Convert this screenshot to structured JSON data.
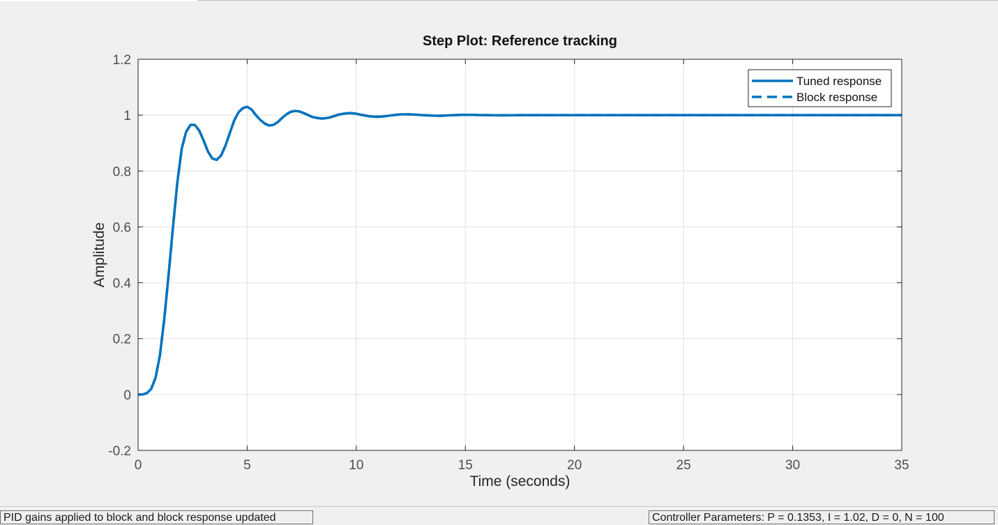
{
  "status_bar": {
    "left_message": "PID gains applied to block and block response updated",
    "right_message": "Controller Parameters: P = 0.1353, I = 1.02, D =  0, N = 100"
  },
  "colors": {
    "series": "#0072bd",
    "grid": "#e0e0e0",
    "axis": "#262626",
    "tick_text": "#4d4d4d",
    "background": "#f0f0f0",
    "plot_background": "#ffffff"
  },
  "chart_data": {
    "type": "line",
    "title": "Step Plot: Reference tracking",
    "xlabel": "Time (seconds)",
    "ylabel": "Amplitude",
    "xlim": [
      0,
      35
    ],
    "ylim": [
      -0.2,
      1.2
    ],
    "xticks": [
      0,
      5,
      10,
      15,
      20,
      25,
      30,
      35
    ],
    "yticks": [
      -0.2,
      0,
      0.2,
      0.4,
      0.6,
      0.8,
      1,
      1.2
    ],
    "xtick_labels": [
      "0",
      "5",
      "10",
      "15",
      "20",
      "25",
      "30",
      "35"
    ],
    "ytick_labels": [
      "-0.2",
      "0",
      "0.2",
      "0.4",
      "0.6",
      "0.8",
      "1",
      "1.2"
    ],
    "grid": true,
    "legend_position": "top-right",
    "series": [
      {
        "name": "Tuned response",
        "style": "solid",
        "x": [
          0,
          0.2,
          0.4,
          0.6,
          0.8,
          1.0,
          1.2,
          1.4,
          1.6,
          1.8,
          2.0,
          2.2,
          2.4,
          2.6,
          2.8,
          3.0,
          3.2,
          3.4,
          3.6,
          3.8,
          4.0,
          4.2,
          4.4,
          4.6,
          4.8,
          5.0,
          5.2,
          5.4,
          5.6,
          5.8,
          6.0,
          6.2,
          6.4,
          6.6,
          6.8,
          7.0,
          7.2,
          7.4,
          7.6,
          7.8,
          8.0,
          8.2,
          8.4,
          8.6,
          8.8,
          9.0,
          9.2,
          9.4,
          9.6,
          9.8,
          10.0,
          10.3,
          10.6,
          10.9,
          11.2,
          11.5,
          11.8,
          12.1,
          12.4,
          12.7,
          13.0,
          13.3,
          13.6,
          13.9,
          14.2,
          14.5,
          14.8,
          15.1,
          15.4,
          15.7,
          16.0,
          16.5,
          17.0,
          17.5,
          18.0,
          18.5,
          19.0,
          20.0,
          22.0,
          25.0,
          30.0,
          35.0
        ],
        "y": [
          0,
          0,
          0.005,
          0.02,
          0.06,
          0.14,
          0.27,
          0.43,
          0.6,
          0.76,
          0.88,
          0.94,
          0.965,
          0.965,
          0.945,
          0.91,
          0.87,
          0.845,
          0.84,
          0.855,
          0.89,
          0.935,
          0.98,
          1.01,
          1.025,
          1.03,
          1.02,
          1.0,
          0.983,
          0.97,
          0.963,
          0.965,
          0.975,
          0.99,
          1.003,
          1.012,
          1.015,
          1.013,
          1.007,
          1.0,
          0.993,
          0.99,
          0.988,
          0.989,
          0.992,
          0.997,
          1.002,
          1.005,
          1.007,
          1.007,
          1.005,
          1.0,
          0.996,
          0.994,
          0.995,
          0.998,
          1.001,
          1.003,
          1.003,
          1.002,
          1.0,
          0.999,
          0.998,
          0.998,
          0.999,
          1.0,
          1.001,
          1.001,
          1.001,
          1.0,
          1.0,
          0.9995,
          0.9995,
          1.0,
          1.0,
          1.0,
          1.0,
          1.0,
          1.0,
          1.0,
          1.0,
          1.0
        ]
      },
      {
        "name": "Block response",
        "style": "dashed",
        "x": [
          0,
          0.2,
          0.4,
          0.6,
          0.8,
          1.0,
          1.2,
          1.4,
          1.6,
          1.8,
          2.0,
          2.2,
          2.4,
          2.6,
          2.8,
          3.0,
          3.2,
          3.4,
          3.6,
          3.8,
          4.0,
          4.2,
          4.4,
          4.6,
          4.8,
          5.0,
          5.2,
          5.4,
          5.6,
          5.8,
          6.0,
          6.2,
          6.4,
          6.6,
          6.8,
          7.0,
          7.2,
          7.4,
          7.6,
          7.8,
          8.0,
          8.2,
          8.4,
          8.6,
          8.8,
          9.0,
          9.2,
          9.4,
          9.6,
          9.8,
          10.0,
          10.3,
          10.6,
          10.9,
          11.2,
          11.5,
          11.8,
          12.1,
          12.4,
          12.7,
          13.0,
          13.3,
          13.6,
          13.9,
          14.2,
          14.5,
          14.8,
          15.1,
          15.4,
          15.7,
          16.0,
          16.5,
          17.0,
          17.5,
          18.0,
          18.5,
          19.0,
          20.0,
          22.0,
          25.0,
          30.0,
          35.0
        ],
        "y": [
          0,
          0,
          0.005,
          0.02,
          0.06,
          0.14,
          0.27,
          0.43,
          0.6,
          0.76,
          0.88,
          0.94,
          0.965,
          0.965,
          0.945,
          0.91,
          0.87,
          0.845,
          0.84,
          0.855,
          0.89,
          0.935,
          0.98,
          1.01,
          1.025,
          1.03,
          1.02,
          1.0,
          0.983,
          0.97,
          0.963,
          0.965,
          0.975,
          0.99,
          1.003,
          1.012,
          1.015,
          1.013,
          1.007,
          1.0,
          0.993,
          0.99,
          0.988,
          0.989,
          0.992,
          0.997,
          1.002,
          1.005,
          1.007,
          1.007,
          1.005,
          1.0,
          0.996,
          0.994,
          0.995,
          0.998,
          1.001,
          1.003,
          1.003,
          1.002,
          1.0,
          0.999,
          0.998,
          0.998,
          0.999,
          1.0,
          1.001,
          1.001,
          1.001,
          1.0,
          1.0,
          0.9995,
          0.9995,
          1.0,
          1.0,
          1.0,
          1.0,
          1.0,
          1.0,
          1.0,
          1.0,
          1.0
        ]
      }
    ]
  }
}
